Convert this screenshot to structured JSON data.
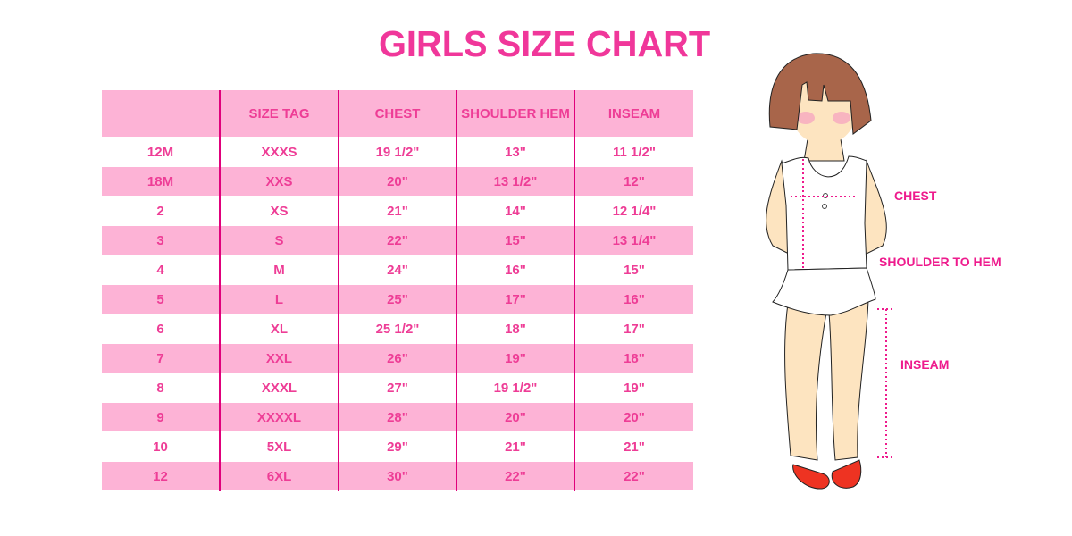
{
  "title": "GIRLS SIZE CHART",
  "colors": {
    "title": "#f0379a",
    "row_pink": "#fdb3d6",
    "divider": "#e0007b",
    "label": "#ee1b8d"
  },
  "table": {
    "headers": [
      "",
      "SIZE TAG",
      "CHEST",
      "SHOULDER HEM",
      "INSEAM"
    ],
    "rows": [
      [
        "12M",
        "XXXS",
        "19 1/2\"",
        "13\"",
        "11 1/2\""
      ],
      [
        "18M",
        "XXS",
        "20\"",
        "13 1/2\"",
        "12\""
      ],
      [
        "2",
        "XS",
        "21\"",
        "14\"",
        "12 1/4\""
      ],
      [
        "3",
        "S",
        "22\"",
        "15\"",
        "13 1/4\""
      ],
      [
        "4",
        "M",
        "24\"",
        "16\"",
        "15\""
      ],
      [
        "5",
        "L",
        "25\"",
        "17\"",
        "16\""
      ],
      [
        "6",
        "XL",
        "25 1/2\"",
        "18\"",
        "17\""
      ],
      [
        "7",
        "XXL",
        "26\"",
        "19\"",
        "18\""
      ],
      [
        "8",
        "XXXL",
        "27\"",
        "19 1/2\"",
        "19\""
      ],
      [
        "9",
        "XXXXL",
        "28\"",
        "20\"",
        "20\""
      ],
      [
        "10",
        "5XL",
        "29\"",
        "21\"",
        "21\""
      ],
      [
        "12",
        "6XL",
        "30\"",
        "22\"",
        "22\""
      ]
    ]
  },
  "illustration": {
    "labels": {
      "chest": "CHEST",
      "shoulder": "SHOULDER TO HEM",
      "inseam": "INSEAM"
    }
  }
}
